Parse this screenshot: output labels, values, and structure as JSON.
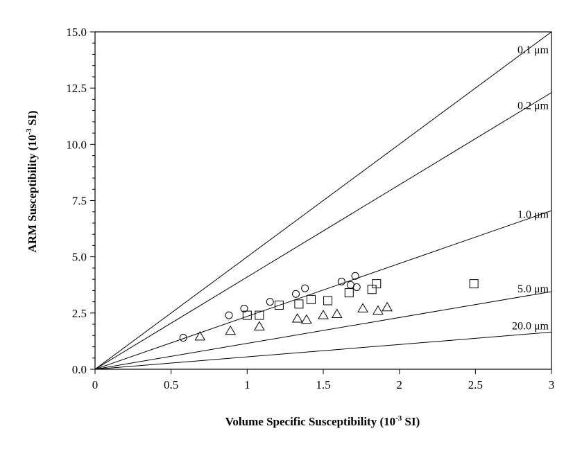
{
  "chart_data": {
    "type": "scatter",
    "title": "",
    "xlabel": "Volume Specific Susceptibility (10-3 SI)",
    "xlabel_parts": {
      "main": "Volume Specific Susceptibility (10",
      "sup": "-3",
      "tail": " SI)"
    },
    "ylabel": "ARM Susceptibility (10-3 SI)",
    "ylabel_parts": {
      "main": "ARM Susceptibility (10",
      "sup": "-3",
      "tail": " SI)"
    },
    "xlim": [
      0,
      3
    ],
    "ylim": [
      0,
      15
    ],
    "x_ticks": [
      0,
      0.5,
      1,
      1.5,
      2,
      2.5,
      3
    ],
    "x_tick_labels": [
      "0",
      "0.5",
      "1",
      "1.5",
      "2",
      "2.5",
      "3"
    ],
    "y_ticks": [
      0,
      2.5,
      5,
      7.5,
      10,
      12.5,
      15
    ],
    "y_tick_labels": [
      "0.0",
      "2.5",
      "5.0",
      "7.5",
      "10.0",
      "12.5",
      "15.0"
    ],
    "grid": false,
    "legend": "none",
    "reference_lines": [
      {
        "label": "0.1 μm",
        "slope": 5.0
      },
      {
        "label": "0.2 μm",
        "slope": 4.1
      },
      {
        "label": "1.0 μm",
        "slope": 2.35
      },
      {
        "label": "5.0 μm",
        "slope": 1.15
      },
      {
        "label": "20.0 μm",
        "slope": 0.55
      }
    ],
    "series": [
      {
        "marker": "circle",
        "x": [
          0.58,
          0.88,
          0.98,
          1.15,
          1.32,
          1.38,
          1.62,
          1.68,
          1.71,
          1.72
        ],
        "y": [
          1.4,
          2.4,
          2.7,
          3.0,
          3.35,
          3.6,
          3.9,
          3.75,
          4.15,
          3.65
        ]
      },
      {
        "marker": "square",
        "x": [
          1.0,
          1.08,
          1.21,
          1.34,
          1.42,
          1.53,
          1.67,
          1.82,
          1.85,
          2.49
        ],
        "y": [
          2.4,
          2.4,
          2.85,
          2.9,
          3.1,
          3.05,
          3.4,
          3.55,
          3.8,
          3.8
        ]
      },
      {
        "marker": "triangle",
        "x": [
          0.69,
          0.89,
          1.08,
          1.33,
          1.39,
          1.5,
          1.59,
          1.76,
          1.86,
          1.92
        ],
        "y": [
          1.45,
          1.7,
          1.9,
          2.25,
          2.2,
          2.4,
          2.45,
          2.7,
          2.6,
          2.75
        ]
      }
    ]
  }
}
